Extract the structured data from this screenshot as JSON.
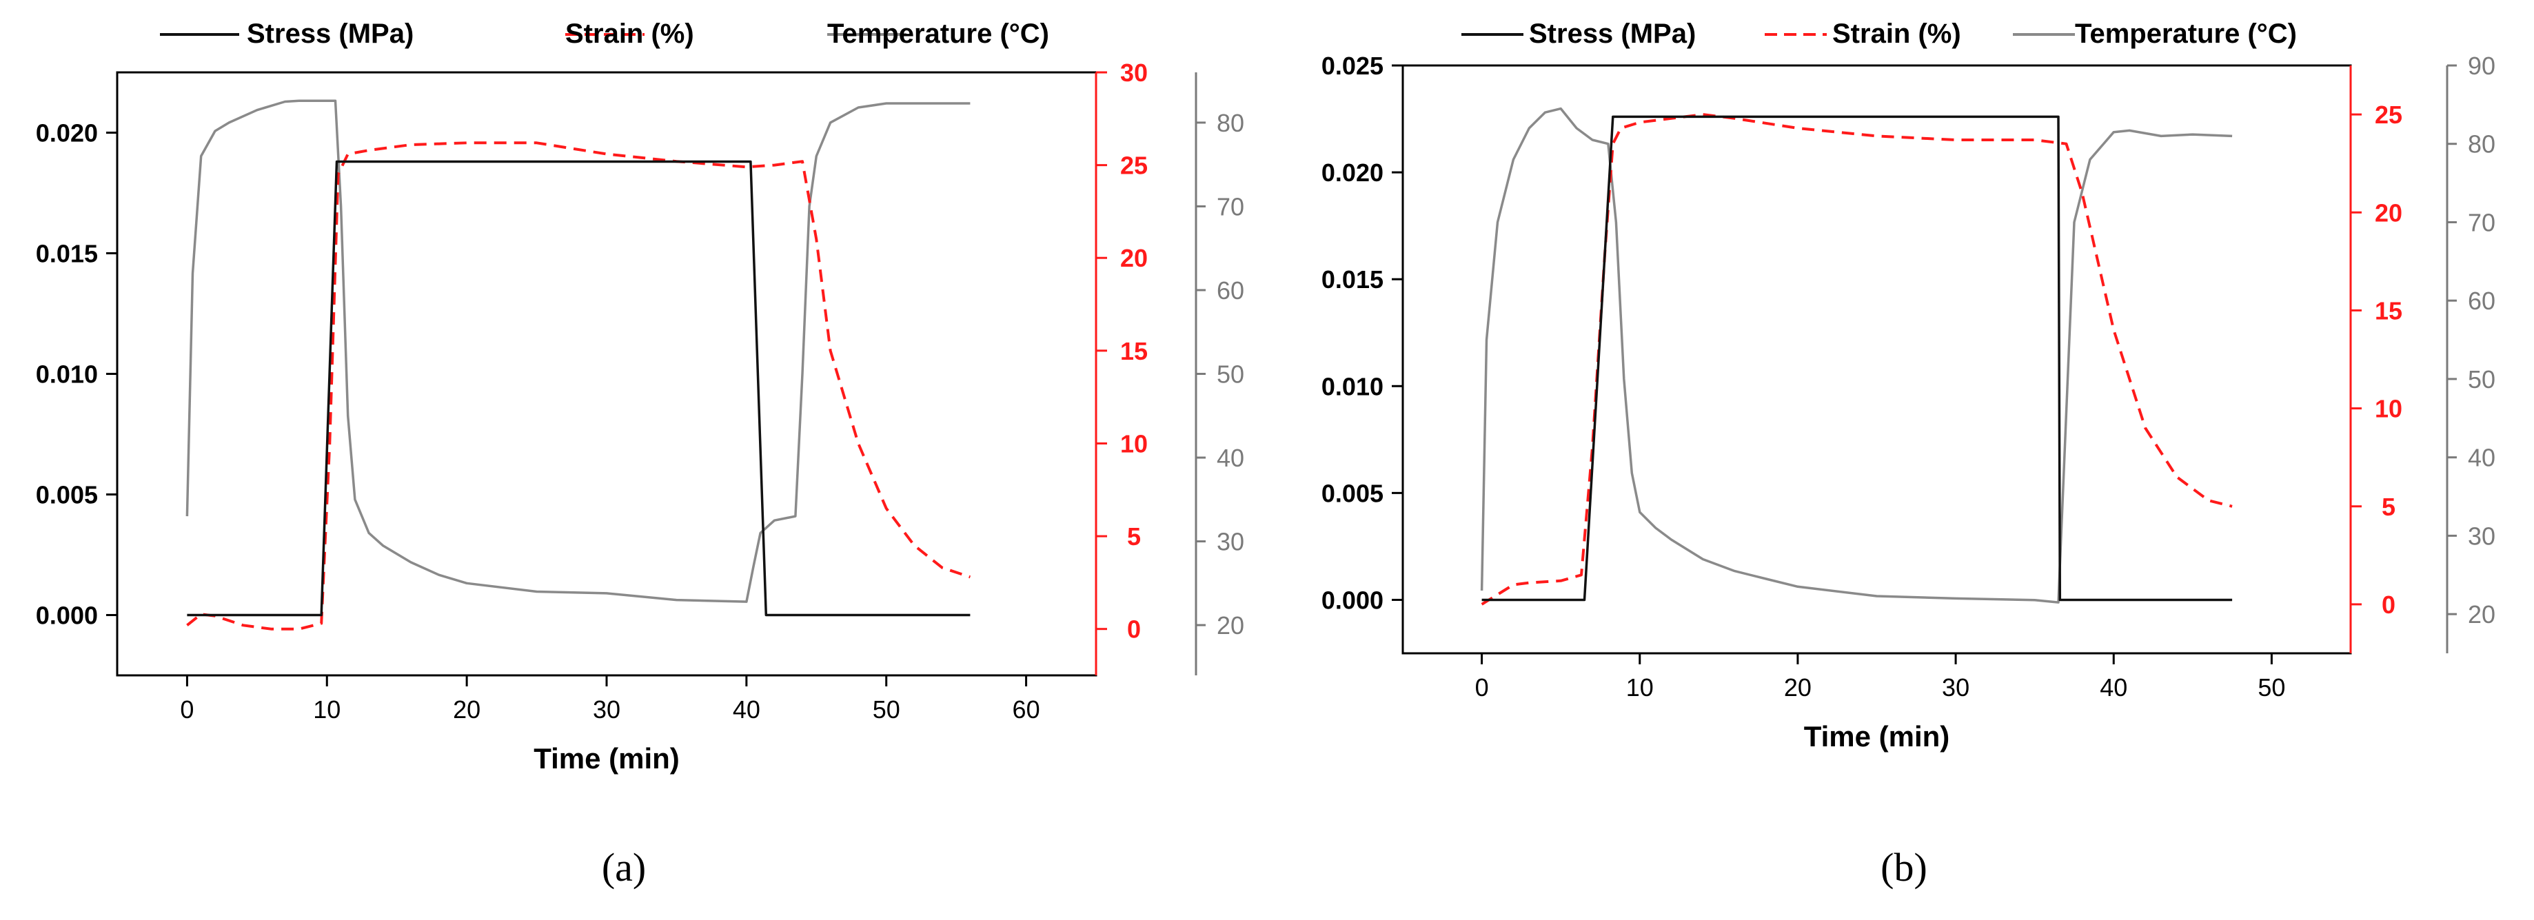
{
  "figure": {
    "panels": [
      "(a)",
      "(b)"
    ]
  },
  "colors": {
    "stress": "#111111",
    "strain": "#ff1a1a",
    "temperature": "#8a8a8a",
    "axis": "#000000",
    "strain_axis": "#ff1a1a",
    "temp_axis": "#7a7a7a"
  },
  "chart_data": [
    {
      "type": "line",
      "panel": "(a)",
      "xlabel": "Time (min)",
      "xlim": [
        -5,
        65
      ],
      "xticks": [
        0,
        10,
        20,
        30,
        40,
        50,
        60
      ],
      "legend": {
        "position": "top",
        "entries": [
          {
            "label": "Stress (MPa)",
            "style": "solid",
            "color": "#111111"
          },
          {
            "label": "Strain (%)",
            "style": "dashed",
            "color": "#ff1a1a"
          },
          {
            "label": "Temperature (°C)",
            "style": "solid",
            "color": "#8a8a8a"
          }
        ]
      },
      "axes": {
        "stress": {
          "side": "left",
          "lim": [
            -0.0025,
            0.0225
          ],
          "ticks": [
            "0.000",
            "0.005",
            "0.010",
            "0.015",
            "0.020"
          ],
          "tick_values": [
            0,
            0.005,
            0.01,
            0.015,
            0.02
          ]
        },
        "strain": {
          "side": "right",
          "lim": [
            -2.5,
            30
          ],
          "ticks": [
            "0",
            "5",
            "10",
            "15",
            "20",
            "25",
            "30"
          ],
          "tick_values": [
            0,
            5,
            10,
            15,
            20,
            25,
            30
          ]
        },
        "temperature": {
          "side": "right-offset",
          "lim": [
            14,
            86
          ],
          "ticks": [
            "20",
            "30",
            "40",
            "50",
            "60",
            "70",
            "80"
          ],
          "tick_values": [
            20,
            30,
            40,
            50,
            60,
            70,
            80
          ]
        }
      },
      "series": [
        {
          "name": "Stress (MPa)",
          "axis": "stress",
          "style": "solid",
          "x": [
            0,
            9.6,
            10.7,
            40.3,
            41.4,
            56
          ],
          "y": [
            0,
            0,
            0.0188,
            0.0188,
            0,
            0
          ]
        },
        {
          "name": "Strain (%)",
          "axis": "strain",
          "style": "dashed",
          "x": [
            0,
            1,
            2,
            4,
            6,
            8,
            9.6,
            10.2,
            10.8,
            11.5,
            13,
            16,
            20,
            25,
            30,
            35,
            40,
            42,
            44,
            45,
            46,
            48,
            50,
            52,
            54,
            56
          ],
          "y": [
            0.2,
            0.8,
            0.7,
            0.2,
            0,
            0,
            0.3,
            10,
            24.5,
            25.6,
            25.8,
            26.1,
            26.2,
            26.2,
            25.6,
            25.2,
            24.9,
            25,
            25.2,
            21,
            15,
            10,
            6.5,
            4.5,
            3.3,
            2.8
          ]
        },
        {
          "name": "Temperature (°C)",
          "axis": "temperature",
          "style": "solid",
          "x": [
            0,
            0.4,
            1,
            2,
            3,
            5,
            7,
            8,
            10,
            10.6,
            11,
            11.5,
            12,
            13,
            14,
            16,
            18,
            20,
            25,
            30,
            35,
            40,
            40.5,
            41,
            42,
            43.5,
            44,
            44.5,
            45,
            46,
            48,
            50,
            56
          ],
          "y": [
            33,
            62,
            76,
            79,
            80,
            81.5,
            82.5,
            82.6,
            82.6,
            82.6,
            70,
            45,
            35,
            31,
            29.5,
            27.5,
            26,
            25,
            24,
            23.8,
            23,
            22.8,
            27,
            31,
            32.5,
            33,
            50,
            70,
            76,
            80,
            81.8,
            82.3,
            82.3
          ]
        }
      ]
    },
    {
      "type": "line",
      "panel": "(b)",
      "xlabel": "Time (min)",
      "xlim": [
        -5,
        55
      ],
      "xticks": [
        0,
        10,
        20,
        30,
        40,
        50
      ],
      "legend": {
        "position": "top",
        "entries": [
          {
            "label": "Stress (MPa)",
            "style": "solid",
            "color": "#111111"
          },
          {
            "label": "Strain (%)",
            "style": "dashed",
            "color": "#ff1a1a"
          },
          {
            "label": "Temperature (°C)",
            "style": "solid",
            "color": "#8a8a8a"
          }
        ]
      },
      "axes": {
        "stress": {
          "side": "left",
          "lim": [
            -0.0025,
            0.025
          ],
          "ticks": [
            "0.000",
            "0.005",
            "0.010",
            "0.015",
            "0.020",
            "0.025"
          ],
          "tick_values": [
            0,
            0.005,
            0.01,
            0.015,
            0.02,
            0.025
          ]
        },
        "strain": {
          "side": "right",
          "lim": [
            -2.5,
            27.5
          ],
          "ticks": [
            "0",
            "5",
            "10",
            "15",
            "20",
            "25"
          ],
          "tick_values": [
            0,
            5,
            10,
            15,
            20,
            25
          ]
        },
        "temperature": {
          "side": "right-offset",
          "lim": [
            15,
            90
          ],
          "ticks": [
            "20",
            "30",
            "40",
            "50",
            "60",
            "70",
            "80",
            "90"
          ],
          "tick_values": [
            20,
            30,
            40,
            50,
            60,
            70,
            80,
            90
          ]
        }
      },
      "series": [
        {
          "name": "Stress (MPa)",
          "axis": "stress",
          "style": "solid",
          "x": [
            0,
            6.5,
            8.3,
            36.5,
            36.6,
            47.5
          ],
          "y": [
            0,
            0,
            0.0226,
            0.0226,
            0,
            0
          ]
        },
        {
          "name": "Strain (%)",
          "axis": "strain",
          "style": "dashed",
          "x": [
            0,
            1,
            2,
            3,
            5,
            6.3,
            7,
            7.8,
            8.3,
            8.8,
            10,
            12,
            14,
            16,
            20,
            25,
            30,
            35,
            37,
            38,
            40,
            42,
            44,
            46,
            47.5
          ],
          "y": [
            0,
            0.5,
            1,
            1.1,
            1.2,
            1.5,
            8,
            18,
            23.5,
            24.3,
            24.6,
            24.8,
            25,
            24.8,
            24.3,
            23.9,
            23.7,
            23.7,
            23.5,
            21,
            14,
            9,
            6.5,
            5.3,
            5
          ]
        },
        {
          "name": "Temperature (°C)",
          "axis": "temperature",
          "style": "solid",
          "x": [
            0,
            0.3,
            1,
            2,
            3,
            4,
            5,
            6,
            7,
            8,
            8.5,
            9,
            9.5,
            10,
            11,
            12,
            14,
            16,
            18,
            20,
            25,
            30,
            35,
            36.5,
            36.8,
            37.5,
            38.5,
            40,
            41,
            43,
            45,
            47.5
          ],
          "y": [
            23,
            55,
            70,
            78,
            82,
            84,
            84.5,
            82,
            80.5,
            80,
            70,
            50,
            38,
            33,
            31,
            29.5,
            27,
            25.5,
            24.5,
            23.5,
            22.3,
            22,
            21.8,
            21.5,
            36,
            70,
            78,
            81.5,
            81.7,
            81,
            81.2,
            81
          ]
        }
      ]
    }
  ]
}
